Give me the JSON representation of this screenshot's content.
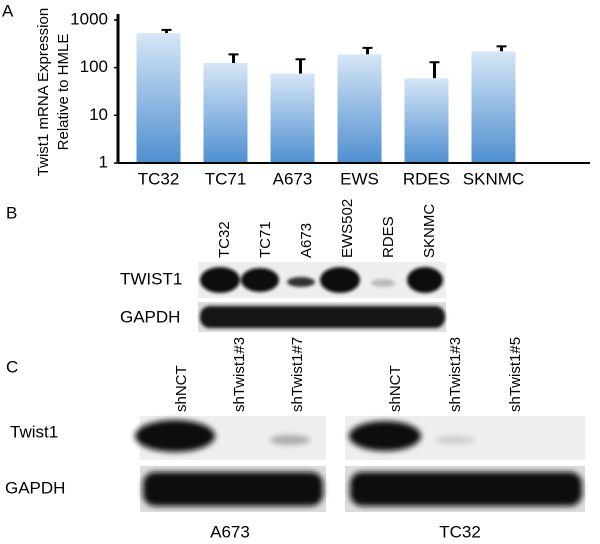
{
  "panel_labels": [
    "A",
    "B",
    "C"
  ],
  "chart_data": {
    "type": "bar",
    "y_label": [
      "Twist1  mRNA Expression",
      "Relative to HMLE"
    ],
    "categories": [
      "TC32",
      "TC71",
      "A673",
      "EWS",
      "RDES",
      "SKNMC"
    ],
    "values": [
      530,
      125,
      75,
      190,
      60,
      220
    ],
    "errors": [
      90,
      65,
      75,
      70,
      70,
      60
    ],
    "color": "#4f8fd0",
    "log_scale": true,
    "ylim": [
      1,
      1000
    ],
    "yticks": [
      1,
      10,
      100,
      1000
    ]
  },
  "blot_b": {
    "lanes": [
      "TC32",
      "TC71",
      "A673",
      "EWS502",
      "RDES",
      "SKNMC"
    ],
    "rows": [
      "TWIST1",
      "GAPDH"
    ]
  },
  "blot_c": {
    "rows": [
      "Twist1",
      "GAPDH"
    ],
    "left": {
      "lanes": [
        "shNCT",
        "shTwist1#3",
        "shTwist1#7"
      ],
      "cell_line": "A673"
    },
    "right": {
      "lanes": [
        "shNCT",
        "shTwist1#3",
        "shTwist1#5"
      ],
      "cell_line": "TC32"
    }
  }
}
